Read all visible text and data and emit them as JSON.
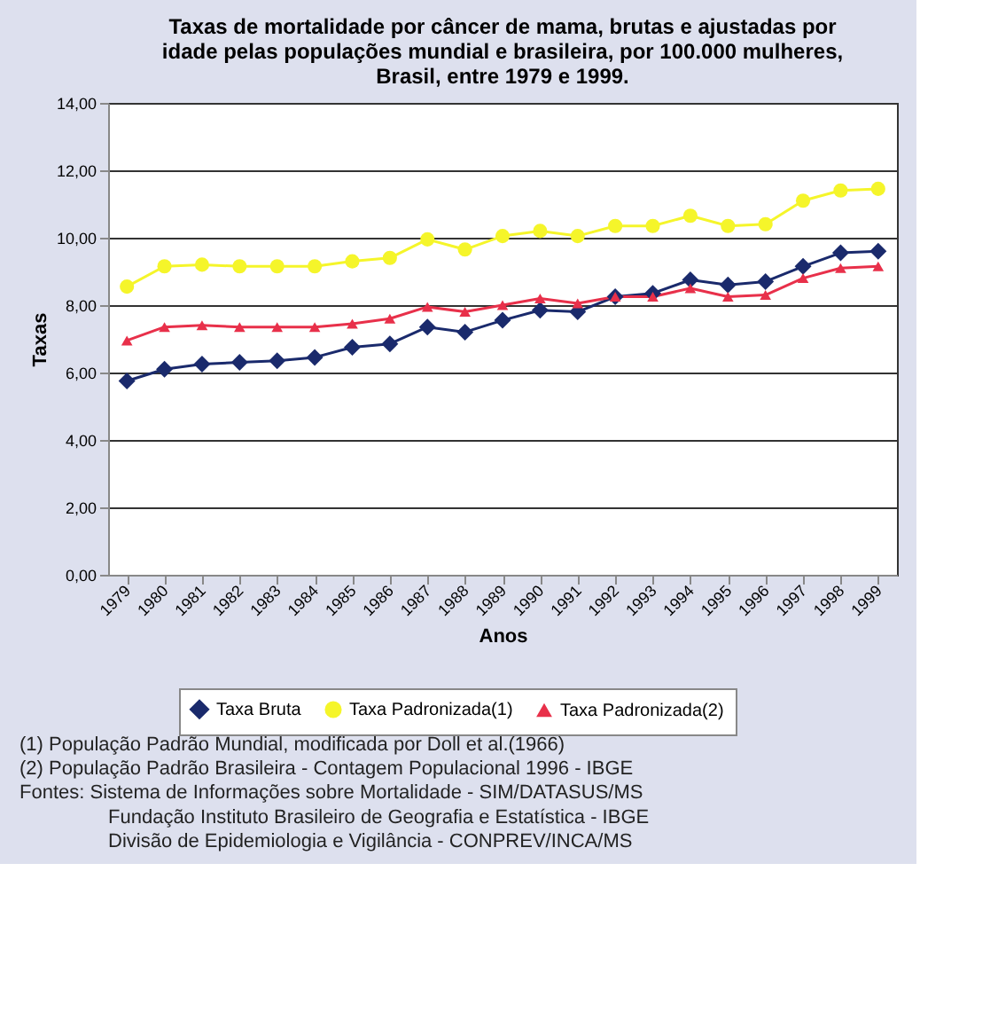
{
  "chart_data": {
    "type": "line",
    "title": "Taxas de mortalidade por câncer de mama, brutas e ajustadas por\nidade pelas populações mundial e brasileira, por 100.000 mulheres,\nBrasil, entre 1979 e 1999.",
    "xlabel": "Anos",
    "ylabel": "Taxas",
    "categories": [
      "1979",
      "1980",
      "1981",
      "1982",
      "1983",
      "1984",
      "1985",
      "1986",
      "1987",
      "1988",
      "1989",
      "1990",
      "1991",
      "1992",
      "1993",
      "1994",
      "1995",
      "1996",
      "1997",
      "1998",
      "1999"
    ],
    "series": [
      {
        "name": "Taxa Bruta",
        "color": "#1a2a6c",
        "marker": "diamond",
        "values": [
          5.75,
          6.1,
          6.25,
          6.3,
          6.35,
          6.45,
          6.75,
          6.85,
          7.35,
          7.2,
          7.55,
          7.85,
          7.8,
          8.25,
          8.35,
          8.75,
          8.6,
          8.7,
          9.15,
          9.55,
          9.6
        ]
      },
      {
        "name": "Taxa Padronizada(1)",
        "color": "#f5f52a",
        "marker": "circle",
        "values": [
          8.55,
          9.15,
          9.2,
          9.15,
          9.15,
          9.15,
          9.3,
          9.4,
          9.95,
          9.65,
          10.05,
          10.2,
          10.05,
          10.35,
          10.35,
          10.65,
          10.35,
          10.4,
          11.1,
          11.4,
          11.45
        ]
      },
      {
        "name": "Taxa Padronizada(2)",
        "color": "#e8304a",
        "marker": "triangle",
        "values": [
          6.95,
          7.35,
          7.4,
          7.35,
          7.35,
          7.35,
          7.45,
          7.6,
          7.95,
          7.8,
          8.0,
          8.2,
          8.05,
          8.25,
          8.25,
          8.5,
          8.25,
          8.3,
          8.8,
          9.1,
          9.15
        ]
      }
    ],
    "ylim": [
      0,
      14
    ],
    "yticks": [
      {
        "value": 0,
        "label": "0,00"
      },
      {
        "value": 2,
        "label": "2,00"
      },
      {
        "value": 4,
        "label": "4,00"
      },
      {
        "value": 6,
        "label": "6,00"
      },
      {
        "value": 8,
        "label": "8,00"
      },
      {
        "value": 10,
        "label": "10,00"
      },
      {
        "value": 12,
        "label": "12,00"
      },
      {
        "value": 14,
        "label": "14,00"
      }
    ],
    "grid": "y",
    "legend": "bottom",
    "line_style": "solid",
    "annotations": [
      "(1) População Padrão Mundial, modificada por Doll et al.(1966)",
      "(2) População Padrão Brasileira - Contagem Populacional 1996 - IBGE",
      "Fontes: Sistema de Informações sobre Mortalidade - SIM/DATASUS/MS",
      "Fundação Instituto Brasileiro de Geografia e Estatística - IBGE",
      "Divisão de Epidemiologia e Vigilância - CONPREV/INCA/MS"
    ]
  }
}
